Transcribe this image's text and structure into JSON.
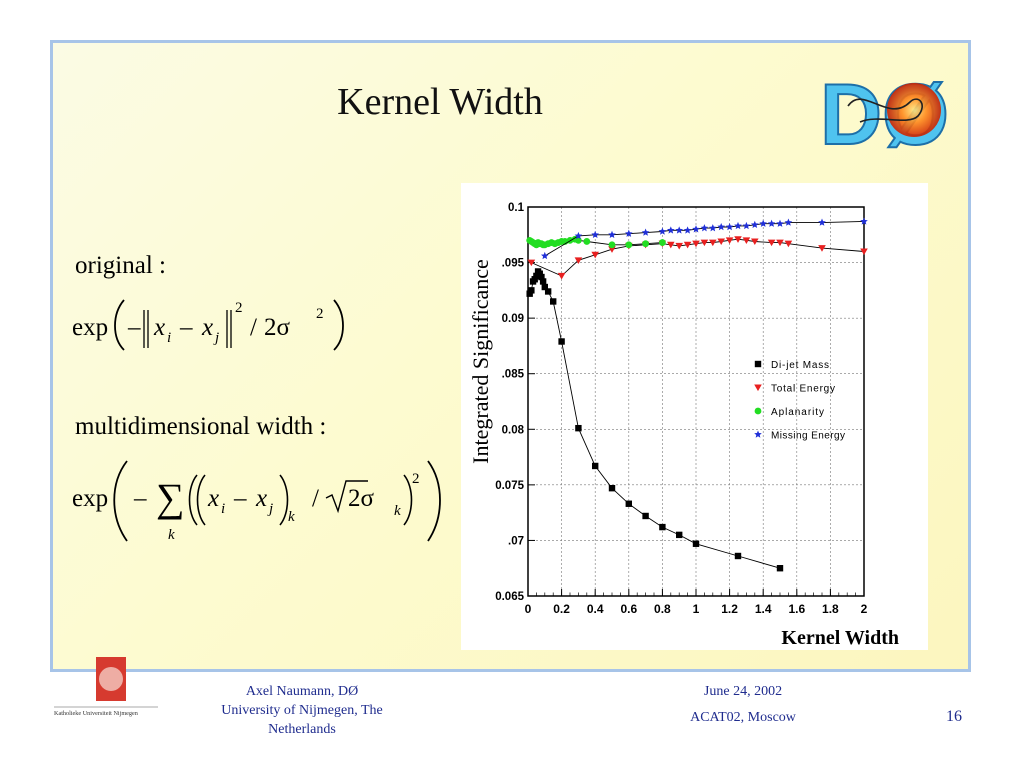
{
  "slide": {
    "title": "Kernel Width",
    "page_number": "16",
    "formula_original_label": "original :",
    "formula_multi_label": "multidimensional width :",
    "footer_author_line1": "Axel Naumann, DØ",
    "footer_author_line2": "University of  Nijmegen, The",
    "footer_author_line3": "Netherlands",
    "footer_date": "June 24, 2002",
    "footer_conference": "ACAT02, Moscow",
    "logo_text": "DØ",
    "university_logo_text": "Katholieke Universiteit Nijmegen"
  },
  "formulas": {
    "exp": "exp",
    "slash": "/",
    "two_sigma": "2σ",
    "sum_sub": "k",
    "sqrt2_sigma": "2σ"
  },
  "chart_data": {
    "type": "scatter",
    "title": "",
    "xlabel": "Kernel Width",
    "ylabel": "Integrated Significance",
    "xlim": [
      0,
      2
    ],
    "ylim": [
      0.065,
      0.1
    ],
    "xticks": [
      "0",
      "0.2",
      "0.4",
      "0.6",
      "0.8",
      "1",
      "1.2",
      "1.4",
      "1.6",
      "1.8",
      "2"
    ],
    "yticks": [
      "0.065",
      ".07",
      "0.075",
      "0.08",
      ".085",
      "0.09",
      ".095",
      "0.1"
    ],
    "grid": true,
    "legend_position": "right-center",
    "series": [
      {
        "name": "Di-jet Mass",
        "color": "#000000",
        "marker": "square",
        "x": [
          0.01,
          0.02,
          0.03,
          0.04,
          0.05,
          0.06,
          0.07,
          0.08,
          0.09,
          0.1,
          0.12,
          0.15,
          0.2,
          0.3,
          0.4,
          0.5,
          0.6,
          0.7,
          0.8,
          0.9,
          1.0,
          1.25,
          1.5
        ],
        "y": [
          0.0922,
          0.0925,
          0.0933,
          0.0935,
          0.0938,
          0.0942,
          0.094,
          0.0937,
          0.0933,
          0.0928,
          0.0924,
          0.0915,
          0.0879,
          0.0801,
          0.0767,
          0.0747,
          0.0733,
          0.0722,
          0.0712,
          0.0705,
          0.0697,
          0.0686,
          0.0675
        ]
      },
      {
        "name": "Total Energy",
        "color": "#e82020",
        "marker": "triangle-down",
        "x": [
          0.02,
          0.2,
          0.3,
          0.4,
          0.5,
          0.6,
          0.7,
          0.8,
          0.85,
          0.9,
          0.95,
          1.0,
          1.05,
          1.1,
          1.15,
          1.2,
          1.25,
          1.3,
          1.35,
          1.45,
          1.5,
          1.55,
          1.75,
          2.0
        ],
        "y": [
          0.095,
          0.0938,
          0.0952,
          0.0957,
          0.0962,
          0.0965,
          0.0966,
          0.0967,
          0.0966,
          0.0965,
          0.0966,
          0.0967,
          0.0968,
          0.0968,
          0.0969,
          0.097,
          0.0971,
          0.097,
          0.0969,
          0.0968,
          0.0968,
          0.0967,
          0.0963,
          0.096
        ]
      },
      {
        "name": "Aplanarity",
        "color": "#22dd22",
        "marker": "circle",
        "x": [
          0.01,
          0.02,
          0.03,
          0.04,
          0.05,
          0.06,
          0.07,
          0.08,
          0.09,
          0.1,
          0.12,
          0.14,
          0.16,
          0.18,
          0.2,
          0.22,
          0.25,
          0.28,
          0.3,
          0.35,
          0.5,
          0.6,
          0.7,
          0.8
        ],
        "y": [
          0.097,
          0.0969,
          0.0968,
          0.0967,
          0.0966,
          0.0968,
          0.0967,
          0.0967,
          0.0966,
          0.0966,
          0.0967,
          0.0968,
          0.0967,
          0.0968,
          0.0969,
          0.0969,
          0.097,
          0.0971,
          0.097,
          0.0969,
          0.0966,
          0.0966,
          0.0967,
          0.0968
        ]
      },
      {
        "name": "Missing Energy",
        "color": "#2030d8",
        "marker": "star",
        "x": [
          0.1,
          0.3,
          0.4,
          0.5,
          0.6,
          0.7,
          0.8,
          0.85,
          0.9,
          0.95,
          1.0,
          1.05,
          1.1,
          1.15,
          1.2,
          1.25,
          1.3,
          1.35,
          1.4,
          1.45,
          1.5,
          1.55,
          1.75,
          2.0
        ],
        "y": [
          0.0956,
          0.0974,
          0.0975,
          0.0975,
          0.0976,
          0.0977,
          0.0978,
          0.0979,
          0.0979,
          0.0979,
          0.098,
          0.0981,
          0.0981,
          0.0982,
          0.0982,
          0.0983,
          0.0983,
          0.0984,
          0.0985,
          0.0985,
          0.0985,
          0.0986,
          0.0986,
          0.0987
        ]
      }
    ]
  }
}
